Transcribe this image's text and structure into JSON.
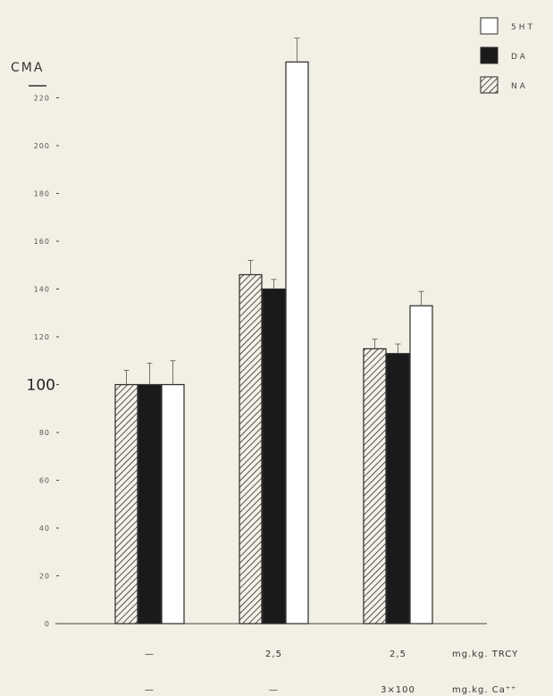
{
  "chart_data": {
    "type": "bar",
    "title": "",
    "ylabel": "CMA",
    "xlabel": "",
    "ylim": [
      0,
      240
    ],
    "yticks": [
      0,
      20,
      40,
      60,
      80,
      100,
      120,
      140,
      160,
      180,
      200,
      220
    ],
    "ytick_labels": [
      "0",
      "20",
      "40",
      "60",
      "80",
      "100",
      "120",
      "140",
      "160",
      "180",
      "200",
      "220"
    ],
    "grid": false,
    "legend": "top-right",
    "categories": [
      "1",
      "2",
      "3"
    ],
    "series": [
      {
        "name": "NA",
        "fill": "hatch",
        "color": "#2a2a2a",
        "values": [
          100,
          146,
          115
        ],
        "errors": [
          6,
          6,
          4
        ]
      },
      {
        "name": "DA",
        "fill": "solid",
        "color": "#1a1a1a",
        "values": [
          100,
          140,
          113
        ],
        "errors": [
          9,
          4,
          4
        ]
      },
      {
        "name": "5HT",
        "fill": "open",
        "color": "#ffffff",
        "values": [
          100,
          235,
          133
        ],
        "errors": [
          10,
          10,
          6
        ]
      }
    ],
    "conditions": [
      {
        "label": "mg.kg. TRCY",
        "values": [
          "—",
          "2,5",
          "2,5"
        ]
      },
      {
        "label": "mg.kg. Ca⁺⁺",
        "values": [
          "—",
          "—",
          "3×100"
        ]
      }
    ]
  }
}
